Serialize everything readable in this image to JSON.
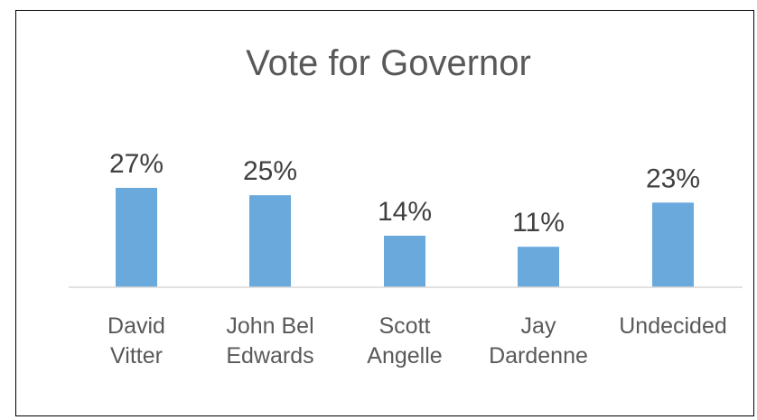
{
  "chart_data": {
    "type": "bar",
    "title": "Vote for Governor",
    "categories": [
      [
        "David",
        "Vitter"
      ],
      [
        "John Bel",
        "Edwards"
      ],
      [
        "Scott",
        "Angelle"
      ],
      [
        "Jay",
        "Dardenne"
      ],
      [
        "Undecided"
      ]
    ],
    "values": [
      27,
      25,
      14,
      11,
      23
    ],
    "data_labels": [
      "27%",
      "25%",
      "14%",
      "11%",
      "23%"
    ],
    "value_unit": "%",
    "ylim": [
      0,
      40
    ],
    "grid": false,
    "legend": "none",
    "colors": {
      "bar": "#6AA9DC",
      "axis": "#D9D9D9",
      "border": "#000000"
    }
  }
}
